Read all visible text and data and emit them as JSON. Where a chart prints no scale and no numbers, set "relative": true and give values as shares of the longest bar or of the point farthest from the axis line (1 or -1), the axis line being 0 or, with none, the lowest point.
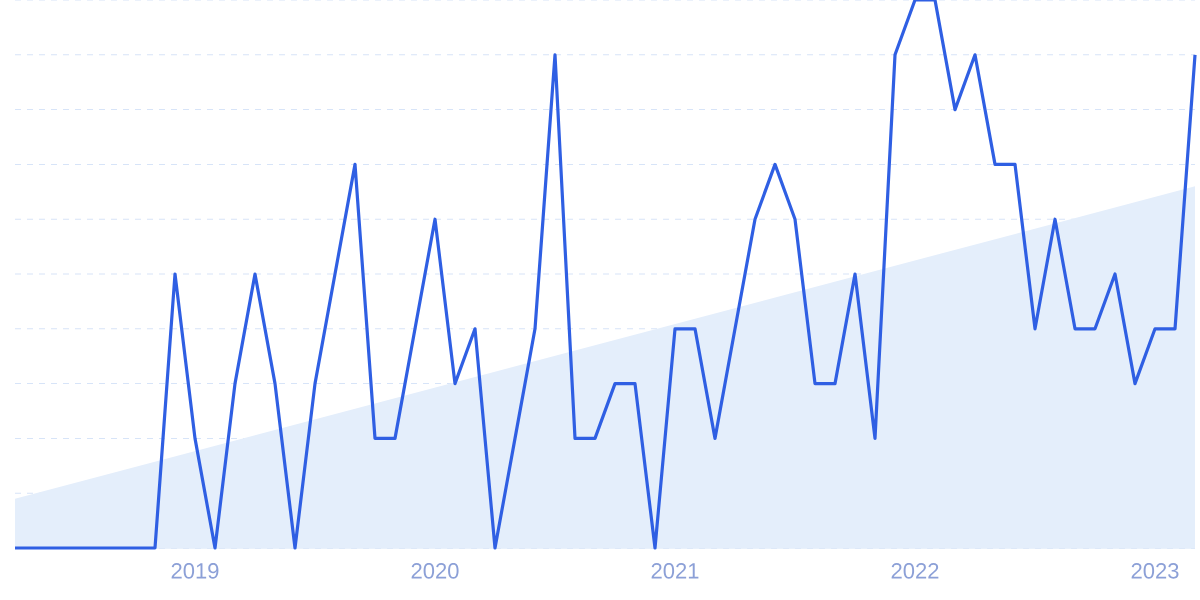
{
  "chart_data": {
    "type": "line",
    "relative": true,
    "grid": "y",
    "line_style": "solid",
    "xlim": [
      "2018-04",
      "2023-03"
    ],
    "xticks": [
      {
        "value": "2019-01",
        "label": "2019"
      },
      {
        "value": "2020-01",
        "label": "2020"
      },
      {
        "value": "2021-01",
        "label": "2021"
      },
      {
        "value": "2022-01",
        "label": "2022"
      },
      {
        "value": "2023-01",
        "label": "2023"
      }
    ],
    "series": [
      {
        "type": "area",
        "color": "#e4eefb",
        "x": [
          "2018-04",
          "2023-03"
        ],
        "values": [
          0.09,
          0.66
        ]
      },
      {
        "color": "#2f5fe3",
        "x": [
          "2018-04",
          "2018-05",
          "2018-06",
          "2018-07",
          "2018-08",
          "2018-09",
          "2018-10",
          "2018-11",
          "2018-12",
          "2019-01",
          "2019-02",
          "2019-03",
          "2019-04",
          "2019-05",
          "2019-06",
          "2019-07",
          "2019-08",
          "2019-09",
          "2019-10",
          "2019-11",
          "2019-12",
          "2020-01",
          "2020-02",
          "2020-03",
          "2020-04",
          "2020-05",
          "2020-06",
          "2020-07",
          "2020-08",
          "2020-09",
          "2020-10",
          "2020-11",
          "2020-12",
          "2021-01",
          "2021-02",
          "2021-03",
          "2021-04",
          "2021-05",
          "2021-06",
          "2021-07",
          "2021-08",
          "2021-09",
          "2021-10",
          "2021-11",
          "2021-12",
          "2022-01",
          "2022-02",
          "2022-03",
          "2022-04",
          "2022-05",
          "2022-06",
          "2022-07",
          "2022-08",
          "2022-09",
          "2022-10",
          "2022-11",
          "2022-12",
          "2023-01",
          "2023-02",
          "2023-03"
        ],
        "values": [
          0,
          0,
          0,
          0,
          0,
          0,
          0,
          0,
          0.5,
          0.2,
          0,
          0.3,
          0.5,
          0.3,
          0,
          0.3,
          0.5,
          0.7,
          0.2,
          0.2,
          0.4,
          0.6,
          0.3,
          0.4,
          0,
          0.2,
          0.4,
          0.9,
          0.2,
          0.2,
          0.3,
          0.3,
          0,
          0.4,
          0.4,
          0.2,
          0.4,
          0.6,
          0.7,
          0.6,
          0.3,
          0.3,
          0.5,
          0.2,
          0.9,
          1,
          1,
          0.8,
          0.9,
          0.7,
          0.7,
          0.4,
          0.6,
          0.4,
          0.4,
          0.5,
          0.3,
          0.4,
          0.4,
          0.9
        ]
      }
    ]
  }
}
